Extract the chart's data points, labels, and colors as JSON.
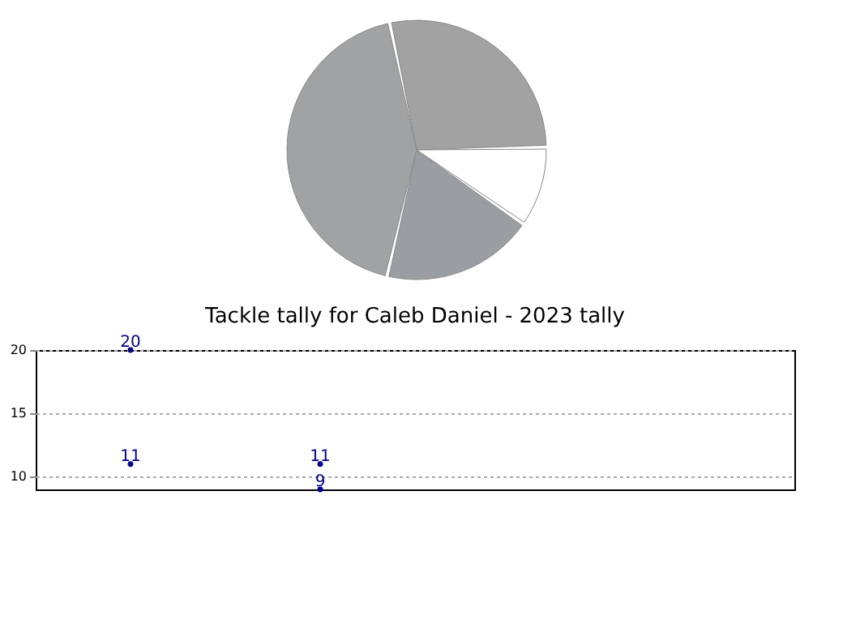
{
  "chart_data": [
    {
      "type": "pie",
      "categories": [
        null,
        null,
        null,
        null
      ],
      "values": [
        28,
        10,
        19,
        43
      ],
      "colors": [
        "#a2a2a2",
        "#ffffff",
        "#9a9da2",
        "#a1a2a4"
      ]
    },
    {
      "type": "scatter",
      "title": "Tackle tally for Caleb Daniel - 2023 tally",
      "categories": [
        null,
        null,
        null,
        null
      ],
      "series": [
        {
          "color": "#00008b",
          "values": [
            20,
            11,
            null,
            null
          ]
        },
        {
          "color": "#00008b",
          "values": [
            11,
            9,
            null,
            null
          ]
        }
      ],
      "ylim": [
        9,
        20
      ],
      "yticks": [
        10,
        15,
        20
      ],
      "grid": "y",
      "marker": "circle",
      "data_labels": true,
      "tick_labels": "y"
    }
  ]
}
